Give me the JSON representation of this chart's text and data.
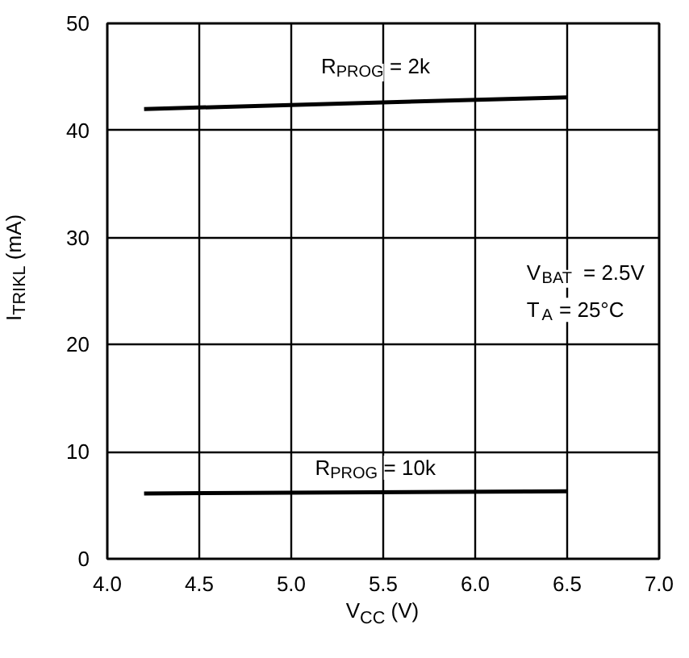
{
  "chart_data": {
    "type": "line",
    "xlabel": "V$_{CC}$ (V)",
    "ylabel": "I$_{TRIKL}$ (mA)",
    "xlim": [
      4.0,
      7.0
    ],
    "ylim": [
      0,
      50
    ],
    "xticks": [
      {
        "value": 4,
        "label": "4.0"
      },
      4.5,
      {
        "value": 5,
        "label": "5.0"
      },
      5.5,
      {
        "value": 6,
        "label": "6.0"
      },
      6.5,
      {
        "value": 7,
        "label": "7.0"
      }
    ],
    "yticks": [
      0,
      10,
      20,
      30,
      40,
      50
    ],
    "grid": true,
    "x": [
      4.2,
      6.5
    ],
    "series": [
      {
        "values": [
          42.0,
          43.1
        ],
        "color": "#000000"
      },
      {
        "values": [
          6.1,
          6.3
        ],
        "color": "#000000"
      }
    ],
    "annotations": [
      "R$_{PROG}$ = 2k",
      "R$_{PROG}$ = 10k",
      "V$_{BAT}$ = 2.5V",
      "T$_{A}$ = 25°C"
    ]
  }
}
